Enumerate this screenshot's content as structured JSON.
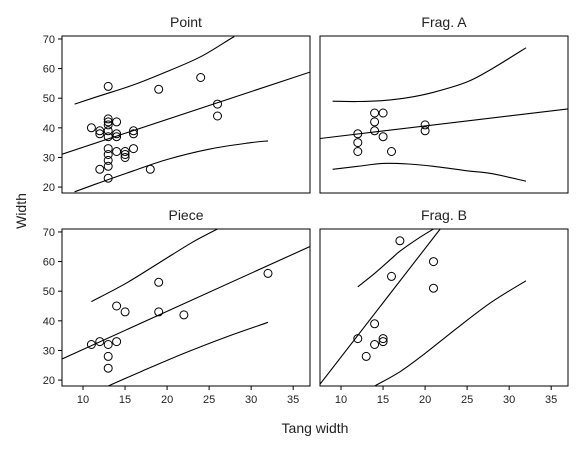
{
  "chart_data": {
    "type": "scatter",
    "xlabel": "Tang width",
    "ylabel": "Width",
    "xlim": [
      7.5,
      37
    ],
    "ylim": [
      18,
      71
    ],
    "xticks": [
      10,
      15,
      20,
      25,
      30,
      35
    ],
    "yticks": [
      20,
      30,
      40,
      50,
      60,
      70
    ],
    "panels": [
      {
        "title": "Point",
        "points": [
          [
            11,
            40
          ],
          [
            12,
            38
          ],
          [
            12,
            39
          ],
          [
            12,
            26
          ],
          [
            13,
            54
          ],
          [
            13,
            43
          ],
          [
            13,
            42
          ],
          [
            13,
            41
          ],
          [
            13,
            39
          ],
          [
            13,
            37
          ],
          [
            13,
            33
          ],
          [
            13,
            31
          ],
          [
            13,
            29
          ],
          [
            13,
            27
          ],
          [
            13,
            23
          ],
          [
            14,
            42
          ],
          [
            14,
            38
          ],
          [
            14,
            37
          ],
          [
            14,
            32
          ],
          [
            15,
            32
          ],
          [
            15,
            31
          ],
          [
            15,
            30
          ],
          [
            16,
            39
          ],
          [
            16,
            38
          ],
          [
            16,
            33
          ],
          [
            18,
            26
          ],
          [
            19,
            53
          ],
          [
            24,
            57
          ],
          [
            26,
            48
          ],
          [
            26,
            44
          ]
        ],
        "fit": [
          [
            7.5,
            31.1
          ],
          [
            37,
            58.8
          ]
        ],
        "upper": [
          [
            9,
            48.0
          ],
          [
            12,
            50.8
          ],
          [
            16,
            54.5
          ],
          [
            20,
            59.0
          ],
          [
            24,
            64.0
          ],
          [
            27.5,
            70.0
          ],
          [
            28,
            70.8
          ]
        ],
        "lower": [
          [
            9,
            18.4
          ],
          [
            12,
            21.5
          ],
          [
            16,
            25.5
          ],
          [
            20,
            29.3
          ],
          [
            25,
            32.8
          ],
          [
            30,
            35.0
          ],
          [
            32,
            35.6
          ]
        ]
      },
      {
        "title": "Frag. A",
        "points": [
          [
            12,
            38
          ],
          [
            12,
            35
          ],
          [
            12,
            32
          ],
          [
            14,
            45
          ],
          [
            14,
            42
          ],
          [
            14,
            39
          ],
          [
            15,
            45
          ],
          [
            15,
            37
          ],
          [
            16,
            32
          ],
          [
            20,
            41
          ],
          [
            20,
            39
          ]
        ],
        "fit": [
          [
            7.5,
            36.4
          ],
          [
            37,
            46.4
          ]
        ],
        "upper": [
          [
            9,
            49.0
          ],
          [
            12,
            48.9
          ],
          [
            15,
            49.2
          ],
          [
            18,
            50.2
          ],
          [
            21,
            52.0
          ],
          [
            25,
            55.5
          ],
          [
            28,
            60.0
          ],
          [
            32,
            67.0
          ]
        ],
        "lower": [
          [
            9,
            26.0
          ],
          [
            12,
            27.0
          ],
          [
            15,
            28.0
          ],
          [
            18,
            27.8
          ],
          [
            21,
            27.0
          ],
          [
            25,
            25.5
          ],
          [
            28,
            24.5
          ],
          [
            32,
            22.0
          ]
        ]
      },
      {
        "title": "Piece",
        "points": [
          [
            11,
            32
          ],
          [
            12,
            33
          ],
          [
            13,
            32
          ],
          [
            13,
            28
          ],
          [
            13,
            24
          ],
          [
            14,
            45
          ],
          [
            14,
            33
          ],
          [
            15,
            43
          ],
          [
            19,
            53
          ],
          [
            19,
            43
          ],
          [
            22,
            42
          ],
          [
            32,
            56
          ]
        ],
        "fit": [
          [
            7.5,
            27.1
          ],
          [
            37,
            65.1
          ]
        ],
        "upper": [
          [
            11,
            46.5
          ],
          [
            15,
            52.5
          ],
          [
            19,
            59.5
          ],
          [
            23,
            66.5
          ],
          [
            26,
            71.0
          ]
        ],
        "lower": [
          [
            13,
            18.0
          ],
          [
            17,
            23.0
          ],
          [
            22,
            29.0
          ],
          [
            27,
            34.5
          ],
          [
            32,
            39.5
          ]
        ]
      },
      {
        "title": "Frag. B",
        "points": [
          [
            12,
            34
          ],
          [
            13,
            28
          ],
          [
            14,
            39
          ],
          [
            14,
            32
          ],
          [
            15,
            34
          ],
          [
            15,
            33
          ],
          [
            16,
            55
          ],
          [
            17,
            67
          ],
          [
            21,
            60
          ],
          [
            21,
            51
          ]
        ],
        "fit": [
          [
            7.5,
            18.6
          ],
          [
            21.8,
            71.0
          ]
        ],
        "upper": [
          [
            12,
            51.5
          ],
          [
            14,
            56.0
          ],
          [
            16,
            61.0
          ],
          [
            17,
            63.5
          ],
          [
            19,
            67.5
          ],
          [
            21,
            71.0
          ]
        ],
        "lower": [
          [
            14,
            18.0
          ],
          [
            17,
            22.8
          ],
          [
            20,
            29.0
          ],
          [
            24,
            38.0
          ],
          [
            28,
            46.5
          ],
          [
            32,
            53.5
          ]
        ]
      }
    ]
  }
}
